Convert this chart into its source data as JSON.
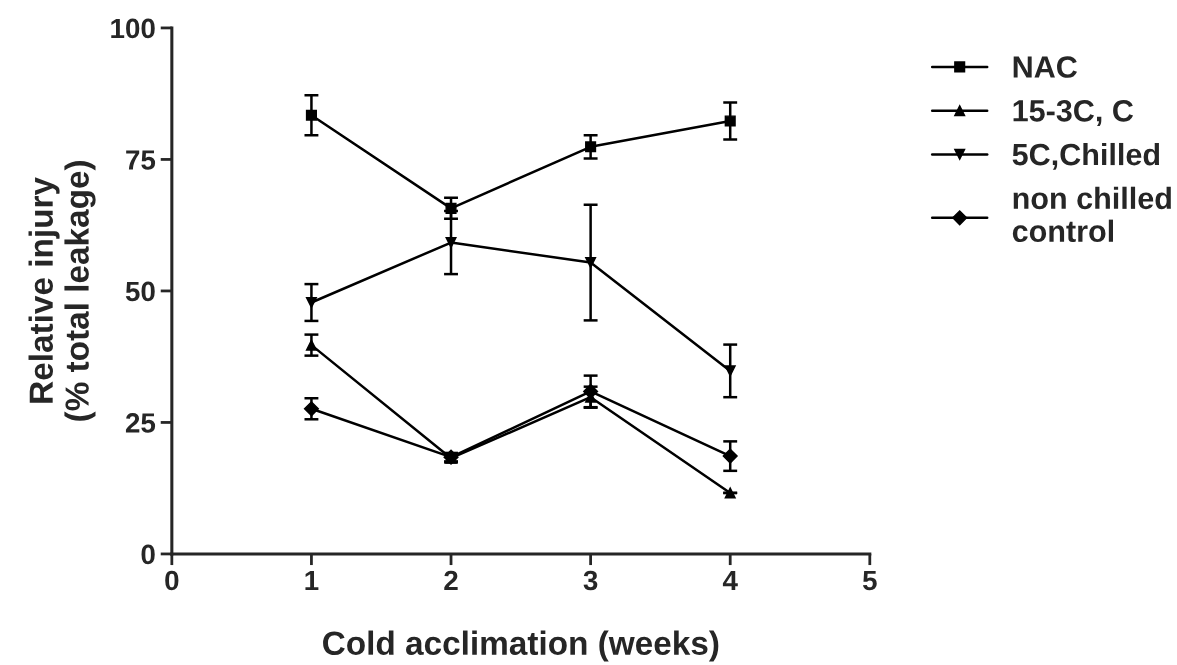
{
  "chart_data": {
    "type": "line",
    "xlabel": "Cold acclimation (weeks)",
    "ylabel": "Relative injury\n(% total leakage)",
    "x": [
      1,
      2,
      3,
      4
    ],
    "xlim": [
      0,
      5
    ],
    "xticks": [
      0,
      1,
      2,
      3,
      4,
      5
    ],
    "ylim": [
      0,
      100
    ],
    "yticks": [
      0,
      25,
      50,
      75,
      100
    ],
    "grid": false,
    "legend": "right",
    "line_style": "solid",
    "series": [
      {
        "name": "NAC",
        "color": "#000000",
        "marker": "square",
        "values": [
          83.4,
          65.7,
          77.4,
          82.3
        ],
        "errors": [
          3.8,
          2,
          2.2,
          3.5
        ]
      },
      {
        "name": "15-3C, C",
        "color": "#000000",
        "marker": "triangle",
        "values": [
          39.7,
          18.2,
          29.8,
          11.6
        ],
        "errors": [
          2,
          0.8,
          2,
          null
        ]
      },
      {
        "name": "5C,Chilled",
        "color": "#000000",
        "marker": "triangle_down",
        "values": [
          47.8,
          59.2,
          55.4,
          34.8
        ],
        "errors": [
          3.5,
          6,
          11,
          5
        ]
      },
      {
        "name": "non chilled\ncontrol",
        "color": "#000000",
        "marker": "diamond",
        "values": [
          27.6,
          18.4,
          30.9,
          18.6
        ],
        "errors": [
          2,
          0.8,
          3,
          2.8
        ]
      }
    ]
  }
}
